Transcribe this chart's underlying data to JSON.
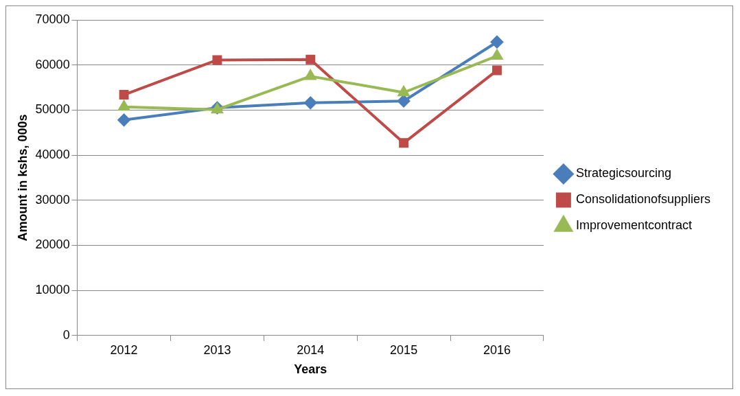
{
  "chart_data": {
    "type": "line",
    "xlabel": "Years",
    "ylabel": "Amount in kshs, 000s",
    "categories": [
      "2012",
      "2013",
      "2014",
      "2015",
      "2016"
    ],
    "series": [
      {
        "name": "Strategicsourcing",
        "color": "#4a7ebb",
        "marker": "diamond",
        "values": [
          47800,
          50500,
          51600,
          52000,
          65100
        ]
      },
      {
        "name": "Consolidationofsuppliers",
        "color": "#be4b48",
        "marker": "square",
        "values": [
          53400,
          61100,
          61200,
          42700,
          58800
        ]
      },
      {
        "name": "Improvementcontract",
        "color": "#98b954",
        "marker": "triangle",
        "values": [
          50700,
          50100,
          57500,
          53900,
          62000
        ]
      }
    ],
    "ylim": [
      0,
      70000
    ],
    "yticks": [
      0,
      10000,
      20000,
      30000,
      40000,
      50000,
      60000,
      70000
    ],
    "grid": "y",
    "legend": "right"
  }
}
